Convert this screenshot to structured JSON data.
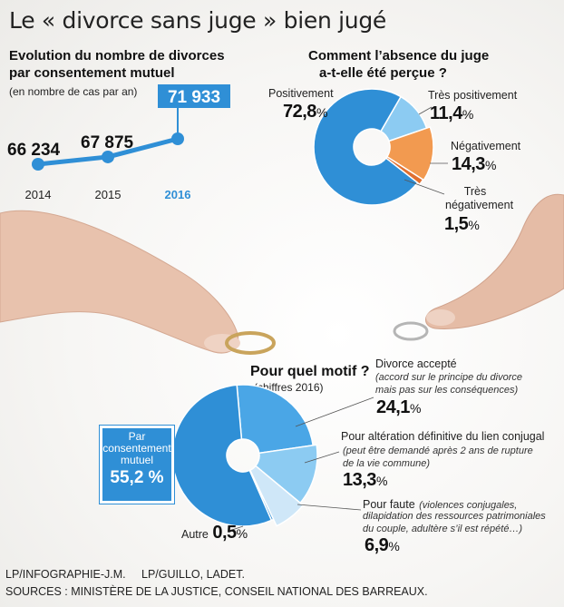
{
  "title": "Le « divorce sans juge » bien jugé",
  "line_panel": {
    "heading_line1": "Evolution du nombre de divorces",
    "heading_line2": "par consentement mutuel",
    "subtitle": "(en nombre de cas par an)"
  },
  "donut1": {
    "heading_line1": "Comment l’absence du juge",
    "heading_line2": "a-t-elle été perçue ?"
  },
  "donut2": {
    "heading": "Pour quel motif ?",
    "subtitle": "(chiffres 2016)",
    "callout": {
      "line1": "Par",
      "line2": "consentement",
      "line3": "mutuel",
      "value": "55,2 %"
    },
    "accepte_note_line1": "(accord sur le principe du divorce",
    "accepte_note_line2": "mais pas sur les conséquences)",
    "alteration_note_line1": "(peut être demandé après 2 ans de rupture",
    "alteration_note_line2": "de la vie commune)",
    "faute_note_line1": "(violences conjugales,",
    "faute_note_line2": "dilapidation des ressources patrimoniales",
    "faute_note_line3": "du couple, adultère s’il est répété…)"
  },
  "footer": {
    "credit": "LP/INFOGRAPHIE-J.M.     LP/GUILLO, LADET.",
    "sources": "SOURCES : MINISTÈRE DE LA JUSTICE, CONSEIL NATIONAL DES BARREAUX."
  },
  "colors": {
    "blue": "#2f8fd6",
    "mid_blue": "#4aa6e6",
    "light_blue": "#8ccbf2",
    "pale_blue": "#cfe7f8",
    "orange": "#f29a50",
    "dark_orange": "#e07030"
  },
  "chart_data": [
    {
      "type": "line",
      "title": "Evolution du nombre de divorces par consentement mutuel",
      "subtitle": "(en nombre de cas par an)",
      "categories": [
        "2014",
        "2015",
        "2016"
      ],
      "values": [
        66234,
        67875,
        71933
      ],
      "value_labels": [
        "66 234",
        "67 875",
        "71 933"
      ],
      "grid": false,
      "highlight": "2016"
    },
    {
      "type": "pie",
      "subtype": "donut",
      "title": "Comment l’absence du juge a-t-elle été perçue ?",
      "slices": [
        {
          "name": "Positivement",
          "value": 72.8,
          "value_label": "72,8",
          "unit": "%",
          "color": "#2f8fd6"
        },
        {
          "name": "Très positivement",
          "value": 11.4,
          "value_label": "11,4",
          "unit": "%",
          "color": "#8ccbf2"
        },
        {
          "name": "Négativement",
          "value": 14.3,
          "value_label": "14,3",
          "unit": "%",
          "color": "#f29a50"
        },
        {
          "name": "Très négativement",
          "value": 1.5,
          "value_label": "1,5",
          "unit": "%",
          "color": "#e07030"
        }
      ]
    },
    {
      "type": "pie",
      "subtype": "donut",
      "title": "Pour quel motif ?",
      "subtitle": "(chiffres 2016)",
      "slices": [
        {
          "name": "Par consentement mutuel",
          "value": 55.2,
          "value_label": "55,2",
          "unit": "%",
          "color": "#2f8fd6"
        },
        {
          "name": "Divorce accepté",
          "value": 24.1,
          "value_label": "24,1",
          "unit": "%",
          "color": "#4aa6e6"
        },
        {
          "name": "Pour altération définitive du lien conjugal",
          "value": 13.3,
          "value_label": "13,3",
          "unit": "%",
          "color": "#8ccbf2"
        },
        {
          "name": "Pour faute",
          "value": 6.9,
          "value_label": "6,9",
          "unit": "%",
          "color": "#cfe7f8"
        },
        {
          "name": "Autre",
          "value": 0.5,
          "value_label": "0,5",
          "unit": "%",
          "color": "#2f8fd6"
        }
      ]
    }
  ]
}
